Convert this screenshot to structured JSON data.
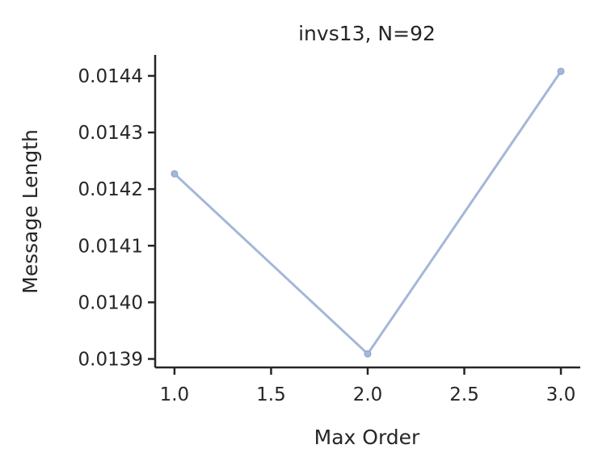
{
  "chart_data": {
    "type": "line",
    "title": "invs13, N=92",
    "xlabel": "Max Order",
    "ylabel": "Message Length",
    "xlim": [
      0.9,
      3.1
    ],
    "ylim": [
      0.013885,
      0.014437
    ],
    "x_ticks": [
      1.0,
      1.5,
      2.0,
      2.5,
      3.0
    ],
    "x_tick_labels": [
      "1.0",
      "1.5",
      "2.0",
      "2.5",
      "3.0"
    ],
    "y_ticks": [
      0.0139,
      0.014,
      0.0141,
      0.0142,
      0.0143,
      0.0144
    ],
    "y_tick_labels": [
      "0.0139",
      "0.0140",
      "0.0141",
      "0.0142",
      "0.0143",
      "0.0144"
    ],
    "grid": false,
    "series": [
      {
        "color": "#a3b7d8",
        "x": [
          1.0,
          2.0,
          3.0
        ],
        "y": [
          0.014227,
          0.013909,
          0.014408
        ]
      }
    ]
  }
}
